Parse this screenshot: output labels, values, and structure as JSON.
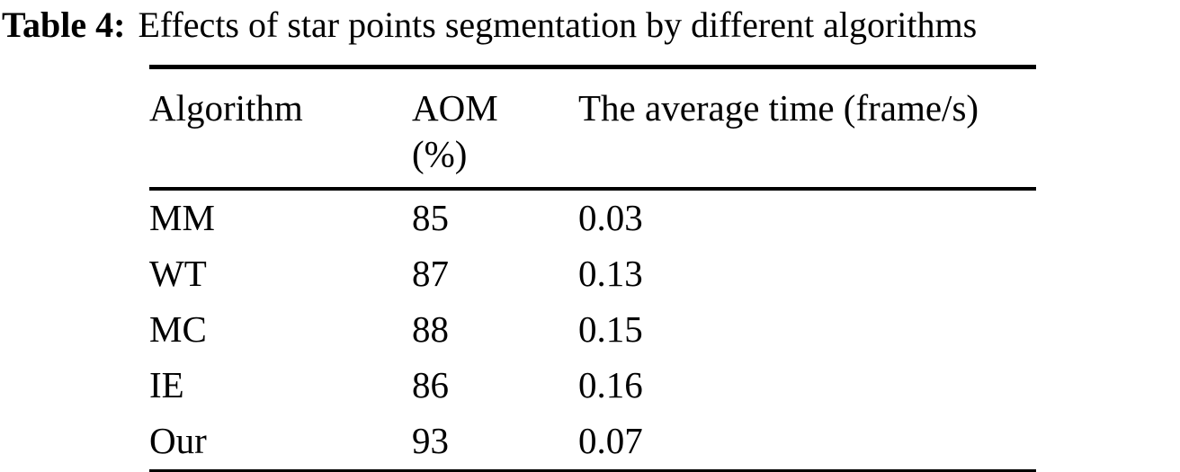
{
  "caption": {
    "label": "Table 4:",
    "text": "Effects of star points segmentation by different algorithms"
  },
  "table": {
    "columns": [
      "Algorithm",
      "AOM (%)",
      "The average time (frame/s)"
    ],
    "rows": [
      {
        "algorithm": "MM",
        "aom_percent": "85",
        "avg_time_frame_s": "0.03"
      },
      {
        "algorithm": "WT",
        "aom_percent": "87",
        "avg_time_frame_s": "0.13"
      },
      {
        "algorithm": "MC",
        "aom_percent": "88",
        "avg_time_frame_s": "0.15"
      },
      {
        "algorithm": "IE",
        "aom_percent": "86",
        "avg_time_frame_s": "0.16"
      },
      {
        "algorithm": "Our",
        "aom_percent": "93",
        "avg_time_frame_s": "0.07"
      }
    ]
  },
  "colors": {
    "text": "#000000",
    "background": "#ffffff",
    "rule": "#000000"
  }
}
